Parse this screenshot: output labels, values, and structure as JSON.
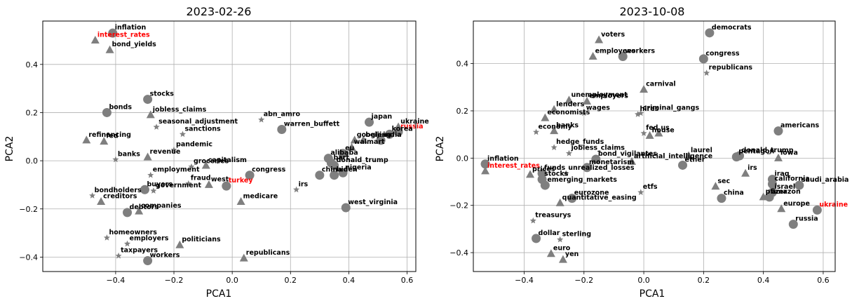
{
  "chart_data": [
    {
      "type": "scatter",
      "title": "2023-02-26",
      "xlabel": "PCA1",
      "ylabel": "PCA2",
      "xlim": [
        -0.65,
        0.63
      ],
      "ylim": [
        -0.46,
        0.58
      ],
      "xticks": [
        -0.4,
        -0.2,
        0.0,
        0.2,
        0.4,
        0.6
      ],
      "yticks": [
        -0.4,
        -0.2,
        0.0,
        0.2,
        0.4
      ],
      "grid": true,
      "highlight_color": "#ff0000",
      "marker_color": "#7f7f7f",
      "points": [
        {
          "label": "inflation",
          "x": -0.41,
          "y": 0.53,
          "marker": "circle"
        },
        {
          "label": "interest_rates",
          "x": -0.47,
          "y": 0.5,
          "marker": "triangle",
          "highlight": true
        },
        {
          "label": "bond_yields",
          "x": -0.42,
          "y": 0.46,
          "marker": "triangle"
        },
        {
          "label": "stocks",
          "x": -0.29,
          "y": 0.255,
          "marker": "circle"
        },
        {
          "label": "bonds",
          "x": -0.43,
          "y": 0.2,
          "marker": "circle"
        },
        {
          "label": "jobless_claims",
          "x": -0.28,
          "y": 0.19,
          "marker": "triangle"
        },
        {
          "label": "seasonal_adjustment",
          "x": -0.26,
          "y": 0.14,
          "marker": "star"
        },
        {
          "label": "sanctions",
          "x": -0.17,
          "y": 0.11,
          "marker": "star"
        },
        {
          "label": "abn_amro",
          "x": 0.1,
          "y": 0.17,
          "marker": "star"
        },
        {
          "label": "warren_buffett",
          "x": 0.17,
          "y": 0.13,
          "marker": "circle"
        },
        {
          "label": "refinancing",
          "x": -0.5,
          "y": 0.085,
          "marker": "triangle"
        },
        {
          "label": "fed",
          "x": -0.44,
          "y": 0.08,
          "marker": "triangle"
        },
        {
          "label": "banks",
          "x": -0.4,
          "y": 0.005,
          "marker": "star"
        },
        {
          "label": "revenue",
          "x": -0.29,
          "y": 0.015,
          "marker": "triangle"
        },
        {
          "label": "pandemic",
          "x": -0.2,
          "y": 0.045,
          "marker": "star"
        },
        {
          "label": "capitalism",
          "x": -0.09,
          "y": -0.02,
          "marker": "triangle"
        },
        {
          "label": "groceries",
          "x": -0.14,
          "y": -0.025,
          "marker": "star"
        },
        {
          "label": "employment",
          "x": -0.28,
          "y": -0.06,
          "marker": "star"
        },
        {
          "label": "congress",
          "x": 0.06,
          "y": -0.06,
          "marker": "circle"
        },
        {
          "label": "fraud",
          "x": -0.15,
          "y": -0.095,
          "marker": "star"
        },
        {
          "label": "west",
          "x": -0.08,
          "y": -0.1,
          "marker": "triangle"
        },
        {
          "label": "turkey",
          "x": -0.02,
          "y": -0.105,
          "marker": "circle",
          "highlight": true
        },
        {
          "label": "buyers",
          "x": -0.3,
          "y": -0.12,
          "marker": "circle"
        },
        {
          "label": "government",
          "x": -0.27,
          "y": -0.125,
          "marker": "star"
        },
        {
          "label": "bondholders",
          "x": -0.48,
          "y": -0.145,
          "marker": "star"
        },
        {
          "label": "creditors",
          "x": -0.45,
          "y": -0.17,
          "marker": "triangle"
        },
        {
          "label": "debtors",
          "x": -0.36,
          "y": -0.215,
          "marker": "circle"
        },
        {
          "label": "companies",
          "x": -0.32,
          "y": -0.21,
          "marker": "triangle"
        },
        {
          "label": "medicare",
          "x": 0.03,
          "y": -0.17,
          "marker": "triangle"
        },
        {
          "label": "homeowners",
          "x": -0.43,
          "y": -0.32,
          "marker": "star"
        },
        {
          "label": "employers",
          "x": -0.36,
          "y": -0.345,
          "marker": "star"
        },
        {
          "label": "politicians",
          "x": -0.18,
          "y": -0.35,
          "marker": "triangle"
        },
        {
          "label": "taxpayers",
          "x": -0.39,
          "y": -0.395,
          "marker": "star"
        },
        {
          "label": "workers",
          "x": -0.29,
          "y": -0.415,
          "marker": "circle"
        },
        {
          "label": "republicans",
          "x": 0.04,
          "y": -0.405,
          "marker": "triangle"
        },
        {
          "label": "irs",
          "x": 0.22,
          "y": -0.12,
          "marker": "star"
        },
        {
          "label": "west_virginia",
          "x": 0.39,
          "y": -0.195,
          "marker": "circle"
        },
        {
          "label": "japan",
          "x": 0.47,
          "y": 0.16,
          "marker": "circle"
        },
        {
          "label": "ukraine",
          "x": 0.57,
          "y": 0.14,
          "marker": "triangle"
        },
        {
          "label": "russia",
          "x": 0.57,
          "y": 0.12,
          "marker": "circle",
          "highlight": true
        },
        {
          "label": "beijing",
          "x": 0.45,
          "y": 0.085,
          "marker": "triangle"
        },
        {
          "label": "india",
          "x": 0.51,
          "y": 0.085,
          "marker": "circle"
        },
        {
          "label": "korea",
          "x": 0.54,
          "y": 0.11,
          "marker": "circle"
        },
        {
          "label": "google",
          "x": 0.42,
          "y": 0.085,
          "marker": "triangle"
        },
        {
          "label": "walmart",
          "x": 0.41,
          "y": 0.055,
          "marker": "triangle"
        },
        {
          "label": "eu",
          "x": 0.38,
          "y": 0.03,
          "marker": "circle"
        },
        {
          "label": "alibaba",
          "x": 0.33,
          "y": 0.01,
          "marker": "circle"
        },
        {
          "label": "bart",
          "x": 0.34,
          "y": -0.01,
          "marker": "circle"
        },
        {
          "label": "donald_trump",
          "x": 0.35,
          "y": -0.02,
          "marker": "circle"
        },
        {
          "label": "china",
          "x": 0.3,
          "y": -0.06,
          "marker": "circle"
        },
        {
          "label": "biden",
          "x": 0.35,
          "y": -0.06,
          "marker": "circle"
        },
        {
          "label": "nigeria",
          "x": 0.38,
          "y": -0.05,
          "marker": "circle"
        }
      ]
    },
    {
      "type": "scatter",
      "title": "2023-10-08",
      "xlabel": "PCA1",
      "ylabel": "PCA2",
      "xlim": [
        -0.57,
        0.64
      ],
      "ylim": [
        -0.48,
        0.58
      ],
      "xticks": [
        -0.4,
        -0.2,
        0.0,
        0.2,
        0.4,
        0.6
      ],
      "yticks": [
        -0.4,
        -0.2,
        0.0,
        0.2,
        0.4
      ],
      "grid": true,
      "highlight_color": "#ff0000",
      "marker_color": "#7f7f7f",
      "points": [
        {
          "label": "voters",
          "x": -0.15,
          "y": 0.5,
          "marker": "triangle"
        },
        {
          "label": "democrats",
          "x": 0.22,
          "y": 0.53,
          "marker": "circle"
        },
        {
          "label": "employees",
          "x": -0.17,
          "y": 0.43,
          "marker": "triangle"
        },
        {
          "label": "workers",
          "x": -0.07,
          "y": 0.43,
          "marker": "circle"
        },
        {
          "label": "congress",
          "x": 0.2,
          "y": 0.42,
          "marker": "circle"
        },
        {
          "label": "republicans",
          "x": 0.21,
          "y": 0.36,
          "marker": "star"
        },
        {
          "label": "carnival",
          "x": 0.0,
          "y": 0.29,
          "marker": "triangle"
        },
        {
          "label": "unemployment",
          "x": -0.25,
          "y": 0.245,
          "marker": "triangle"
        },
        {
          "label": "employers",
          "x": -0.19,
          "y": 0.24,
          "marker": "triangle"
        },
        {
          "label": "lenders",
          "x": -0.3,
          "y": 0.205,
          "marker": "triangle"
        },
        {
          "label": "wages",
          "x": -0.2,
          "y": 0.19,
          "marker": "star"
        },
        {
          "label": "economists",
          "x": -0.33,
          "y": 0.17,
          "marker": "triangle"
        },
        {
          "label": "hires",
          "x": -0.02,
          "y": 0.185,
          "marker": "star"
        },
        {
          "label": "criminal_gangs",
          "x": -0.01,
          "y": 0.19,
          "marker": "star"
        },
        {
          "label": "banks",
          "x": -0.3,
          "y": 0.115,
          "marker": "triangle"
        },
        {
          "label": "economy",
          "x": -0.36,
          "y": 0.11,
          "marker": "star"
        },
        {
          "label": "fed",
          "x": 0.0,
          "y": 0.105,
          "marker": "star"
        },
        {
          "label": "house",
          "x": 0.02,
          "y": 0.095,
          "marker": "triangle"
        },
        {
          "label": "us",
          "x": 0.05,
          "y": 0.105,
          "marker": "triangle"
        },
        {
          "label": "americans",
          "x": 0.45,
          "y": 0.115,
          "marker": "circle"
        },
        {
          "label": "hedge_funds",
          "x": -0.3,
          "y": 0.045,
          "marker": "star"
        },
        {
          "label": "jobless_claims",
          "x": -0.25,
          "y": 0.02,
          "marker": "star"
        },
        {
          "label": "bond_vigilantes",
          "x": -0.16,
          "y": -0.005,
          "marker": "circle"
        },
        {
          "label": "artificial_intelligence",
          "x": -0.04,
          "y": -0.015,
          "marker": "triangle"
        },
        {
          "label": "laurel",
          "x": 0.15,
          "y": 0.01,
          "marker": "triangle"
        },
        {
          "label": "ether",
          "x": 0.13,
          "y": -0.03,
          "marker": "circle"
        },
        {
          "label": "donald_trump",
          "x": 0.32,
          "y": 0.01,
          "marker": "circle"
        },
        {
          "label": "pentagon",
          "x": 0.31,
          "y": 0.005,
          "marker": "circle"
        },
        {
          "label": "iowa",
          "x": 0.45,
          "y": 0.0,
          "marker": "triangle"
        },
        {
          "label": "inflation",
          "x": -0.53,
          "y": -0.025,
          "marker": "circle"
        },
        {
          "label": "interest_rates",
          "x": -0.53,
          "y": -0.055,
          "marker": "triangle",
          "highlight": true
        },
        {
          "label": "prices",
          "x": -0.38,
          "y": -0.07,
          "marker": "triangle"
        },
        {
          "label": "funds",
          "x": -0.34,
          "y": -0.065,
          "marker": "circle"
        },
        {
          "label": "unrealized_losses",
          "x": -0.26,
          "y": -0.065,
          "marker": "star"
        },
        {
          "label": "monetarism",
          "x": -0.19,
          "y": -0.04,
          "marker": "circle"
        },
        {
          "label": "stocks",
          "x": -0.34,
          "y": -0.09,
          "marker": "circle"
        },
        {
          "label": "emerging_markets",
          "x": -0.33,
          "y": -0.115,
          "marker": "circle"
        },
        {
          "label": "irs",
          "x": 0.34,
          "y": -0.065,
          "marker": "triangle"
        },
        {
          "label": "iraq",
          "x": 0.43,
          "y": -0.09,
          "marker": "circle"
        },
        {
          "label": "california",
          "x": 0.43,
          "y": -0.11,
          "marker": "circle"
        },
        {
          "label": "saudi_arabia",
          "x": 0.52,
          "y": -0.115,
          "marker": "circle"
        },
        {
          "label": "israel",
          "x": 0.43,
          "y": -0.145,
          "marker": "circle"
        },
        {
          "label": "sec",
          "x": 0.24,
          "y": -0.12,
          "marker": "triangle"
        },
        {
          "label": "etfs",
          "x": -0.01,
          "y": -0.145,
          "marker": "star"
        },
        {
          "label": "china",
          "x": 0.26,
          "y": -0.17,
          "marker": "circle"
        },
        {
          "label": "pfizer",
          "x": 0.4,
          "y": -0.165,
          "marker": "triangle"
        },
        {
          "label": "amazon",
          "x": 0.42,
          "y": -0.165,
          "marker": "circle"
        },
        {
          "label": "eurozone",
          "x": -0.24,
          "y": -0.17,
          "marker": "circle"
        },
        {
          "label": "quantitative_easing",
          "x": -0.28,
          "y": -0.19,
          "marker": "triangle"
        },
        {
          "label": "europe",
          "x": 0.46,
          "y": -0.215,
          "marker": "triangle"
        },
        {
          "label": "ukraine",
          "x": 0.58,
          "y": -0.22,
          "marker": "circle",
          "highlight": true
        },
        {
          "label": "russia",
          "x": 0.5,
          "y": -0.28,
          "marker": "circle"
        },
        {
          "label": "treasurys",
          "x": -0.37,
          "y": -0.265,
          "marker": "star"
        },
        {
          "label": "dollar",
          "x": -0.36,
          "y": -0.34,
          "marker": "circle"
        },
        {
          "label": "sterling",
          "x": -0.28,
          "y": -0.345,
          "marker": "star"
        },
        {
          "label": "euro",
          "x": -0.31,
          "y": -0.405,
          "marker": "triangle"
        },
        {
          "label": "yen",
          "x": -0.27,
          "y": -0.43,
          "marker": "triangle"
        }
      ]
    }
  ]
}
